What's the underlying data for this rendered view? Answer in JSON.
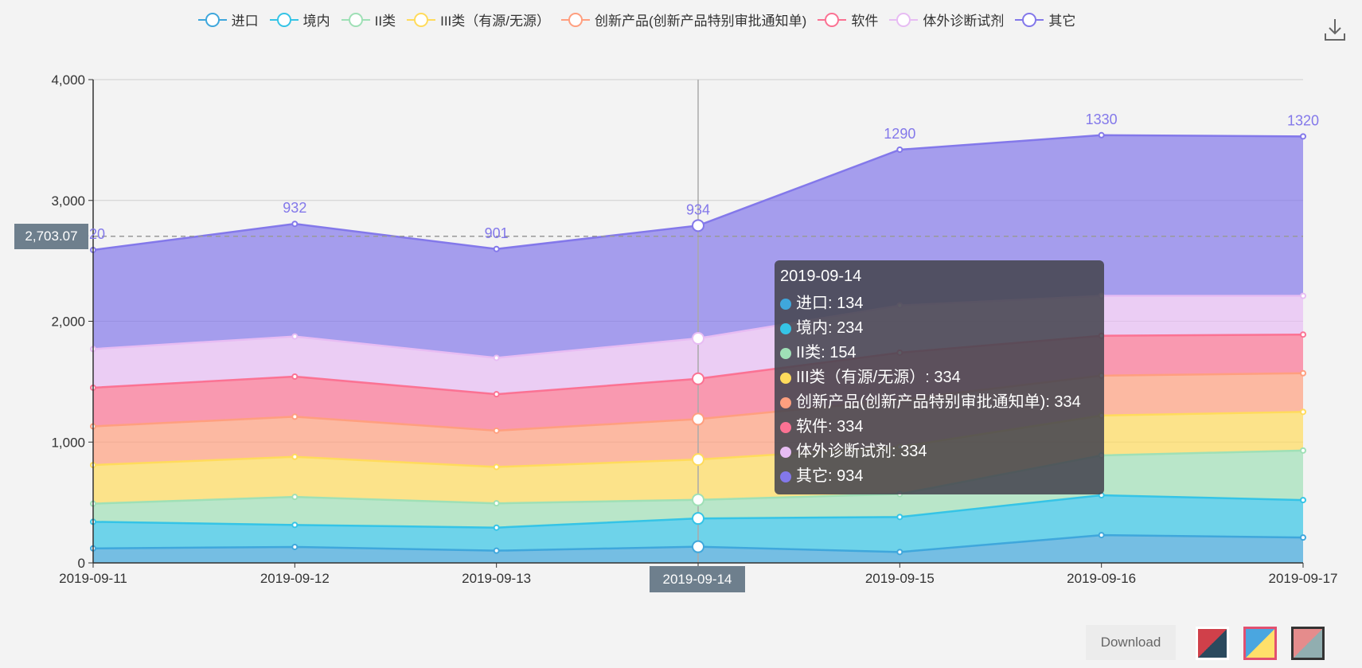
{
  "chart_data": {
    "type": "area",
    "stacked": true,
    "x": [
      "2019-09-11",
      "2019-09-12",
      "2019-09-13",
      "2019-09-14",
      "2019-09-15",
      "2019-09-16",
      "2019-09-17"
    ],
    "ylim": [
      0,
      4000
    ],
    "yticks": [
      "0",
      "1,000",
      "2,000",
      "3,000",
      "4,000"
    ],
    "grid": true,
    "legend": "top",
    "series": [
      {
        "name": "进口",
        "color": "#3fa7dc",
        "values": [
          120,
          132,
          101,
          134,
          90,
          230,
          210
        ]
      },
      {
        "name": "境内",
        "color": "#35c4e6",
        "values": [
          220,
          182,
          191,
          234,
          290,
          330,
          310
        ]
      },
      {
        "name": "II类",
        "color": "#9fe0b6",
        "values": [
          150,
          232,
          201,
          154,
          190,
          330,
          410
        ]
      },
      {
        "name": "III类（有源/无源）",
        "color": "#ffdb5c",
        "values": [
          320,
          332,
          301,
          334,
          390,
          330,
          320
        ]
      },
      {
        "name": "创新产品(创新产品特别审批通知单)",
        "color": "#ff9f7f",
        "values": [
          320,
          332,
          301,
          334,
          390,
          330,
          320
        ]
      },
      {
        "name": "软件",
        "color": "#fb7293",
        "values": [
          320,
          332,
          301,
          334,
          390,
          330,
          320
        ]
      },
      {
        "name": "体外诊断试剂",
        "color": "#e7bcf3",
        "values": [
          320,
          332,
          301,
          334,
          390,
          330,
          320
        ]
      },
      {
        "name": "其它",
        "color": "#8378ea",
        "values": [
          820,
          932,
          901,
          934,
          1290,
          1330,
          1320
        ]
      }
    ],
    "top_series_labels": [
      "820",
      "932",
      "901",
      "934",
      "1290",
      "1330",
      "1320"
    ],
    "axis_pointer": {
      "y_value": "2,703.07",
      "x_value": "2019-09-14"
    },
    "tooltip": {
      "date": "2019-09-14",
      "rows": [
        {
          "label": "进口: 134",
          "color": "#3fa7dc"
        },
        {
          "label": "境内: 234",
          "color": "#35c4e6"
        },
        {
          "label": "II类: 154",
          "color": "#9fe0b6"
        },
        {
          "label": "III类（有源/无源）: 334",
          "color": "#ffdb5c"
        },
        {
          "label": "创新产品(创新产品特别审批通知单): 334",
          "color": "#ff9f7f"
        },
        {
          "label": "软件: 334",
          "color": "#fb7293"
        },
        {
          "label": "体外诊断试剂: 334",
          "color": "#e7bcf3"
        },
        {
          "label": "其它: 934",
          "color": "#8378ea"
        }
      ]
    }
  },
  "toolbar": {
    "download_label": "Download",
    "download_icon": "download-icon"
  },
  "themes": [
    "red-navy",
    "blue-yellow",
    "rose-teal"
  ]
}
